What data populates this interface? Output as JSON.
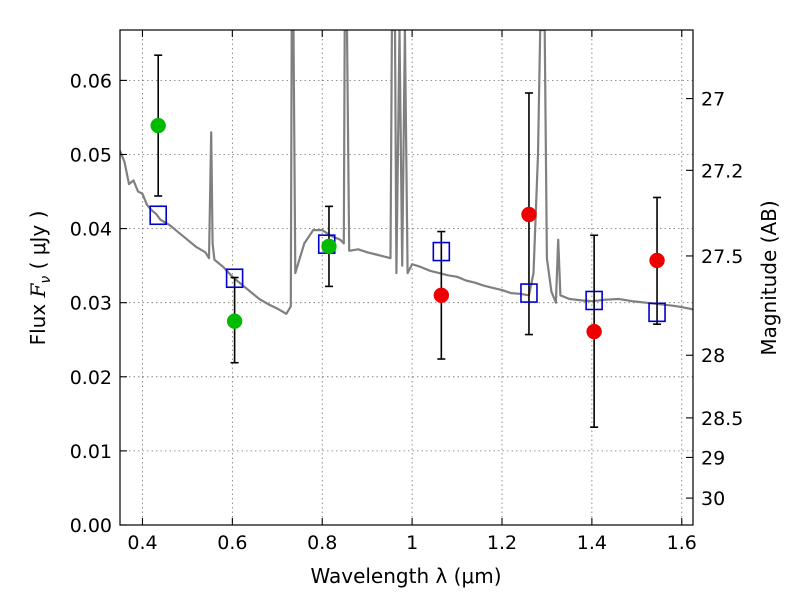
{
  "chart_data": {
    "type": "scatter",
    "xlabel": "Wavelength  λ (μm)",
    "ylabel": "Flux  F_ν  ( μJy )",
    "ylabel_parts": {
      "pre": "Flux  ",
      "sym": "F",
      "sub": "ν",
      "post": "  ( μJy )"
    },
    "y2label": "Magnitude (AB)",
    "xlim": [
      0.35,
      1.625
    ],
    "ylim": [
      0.0,
      0.0668
    ],
    "grid": true,
    "x_ticks": [
      0.4,
      0.6,
      0.8,
      1.0,
      1.2,
      1.4,
      1.6
    ],
    "x_tick_labels": [
      "0.4",
      "0.6",
      "0.8",
      "1",
      "1.2",
      "1.4",
      "1.6"
    ],
    "y_ticks": [
      0.0,
      0.01,
      0.02,
      0.03,
      0.04,
      0.05,
      0.06
    ],
    "y_tick_labels": [
      "0.00",
      "0.01",
      "0.02",
      "0.03",
      "0.04",
      "0.05",
      "0.06"
    ],
    "mag_ticks": [
      {
        "label": "27",
        "value": 27.0
      },
      {
        "label": "27.2",
        "value": 27.2
      },
      {
        "label": "27.5",
        "value": 27.5
      },
      {
        "label": "28",
        "value": 28.0
      },
      {
        "label": "28.5",
        "value": 28.5
      },
      {
        "label": "29",
        "value": 29.0
      },
      {
        "label": "30",
        "value": 30.0
      }
    ],
    "series": [
      {
        "marker": "square",
        "color": "#0000cc",
        "points": [
          {
            "x": 0.435,
            "y": 0.0418
          },
          {
            "x": 0.605,
            "y": 0.0333
          },
          {
            "x": 0.81,
            "y": 0.0379
          },
          {
            "x": 1.065,
            "y": 0.0369
          },
          {
            "x": 1.26,
            "y": 0.0313
          },
          {
            "x": 1.405,
            "y": 0.0303
          },
          {
            "x": 1.545,
            "y": 0.0287
          }
        ]
      },
      {
        "marker": "circle",
        "color": "#00bb00",
        "points": [
          {
            "x": 0.435,
            "y": 0.0539,
            "yerr_low": 0.0444,
            "yerr_high": 0.0634
          },
          {
            "x": 0.605,
            "y": 0.0275,
            "yerr_low": 0.0219,
            "yerr_high": 0.0334
          },
          {
            "x": 0.815,
            "y": 0.0376,
            "yerr_low": 0.0322,
            "yerr_high": 0.043
          }
        ]
      },
      {
        "marker": "circle",
        "color": "#ee0000",
        "points": [
          {
            "x": 1.065,
            "y": 0.031,
            "yerr_low": 0.0224,
            "yerr_high": 0.0396
          },
          {
            "x": 1.26,
            "y": 0.0419,
            "yerr_low": 0.0257,
            "yerr_high": 0.0583
          },
          {
            "x": 1.405,
            "y": 0.0261,
            "yerr_low": 0.0132,
            "yerr_high": 0.0391
          },
          {
            "x": 1.545,
            "y": 0.0357,
            "yerr_low": 0.0271,
            "yerr_high": 0.0442
          }
        ]
      },
      {
        "marker": "line",
        "color": "#808080",
        "points": [
          {
            "x": 0.35,
            "y": 0.0505
          },
          {
            "x": 0.36,
            "y": 0.049
          },
          {
            "x": 0.37,
            "y": 0.046
          },
          {
            "x": 0.38,
            "y": 0.0465
          },
          {
            "x": 0.39,
            "y": 0.045
          },
          {
            "x": 0.4,
            "y": 0.0447
          },
          {
            "x": 0.41,
            "y": 0.0432
          },
          {
            "x": 0.42,
            "y": 0.0425
          },
          {
            "x": 0.43,
            "y": 0.042
          },
          {
            "x": 0.44,
            "y": 0.0412
          },
          {
            "x": 0.46,
            "y": 0.0405
          },
          {
            "x": 0.48,
            "y": 0.0395
          },
          {
            "x": 0.5,
            "y": 0.0385
          },
          {
            "x": 0.52,
            "y": 0.0375
          },
          {
            "x": 0.54,
            "y": 0.0368
          },
          {
            "x": 0.548,
            "y": 0.036
          },
          {
            "x": 0.553,
            "y": 0.053
          },
          {
            "x": 0.556,
            "y": 0.038
          },
          {
            "x": 0.56,
            "y": 0.0358
          },
          {
            "x": 0.58,
            "y": 0.0348
          },
          {
            "x": 0.6,
            "y": 0.0335
          },
          {
            "x": 0.62,
            "y": 0.0325
          },
          {
            "x": 0.64,
            "y": 0.0315
          },
          {
            "x": 0.66,
            "y": 0.0305
          },
          {
            "x": 0.68,
            "y": 0.0298
          },
          {
            "x": 0.7,
            "y": 0.0292
          },
          {
            "x": 0.72,
            "y": 0.0285
          },
          {
            "x": 0.73,
            "y": 0.0295
          },
          {
            "x": 0.732,
            "y": 0.0668
          },
          {
            "x": 0.736,
            "y": 0.0668
          },
          {
            "x": 0.74,
            "y": 0.034
          },
          {
            "x": 0.75,
            "y": 0.036
          },
          {
            "x": 0.76,
            "y": 0.038
          },
          {
            "x": 0.78,
            "y": 0.0398
          },
          {
            "x": 0.8,
            "y": 0.0398
          },
          {
            "x": 0.82,
            "y": 0.039
          },
          {
            "x": 0.84,
            "y": 0.0385
          },
          {
            "x": 0.848,
            "y": 0.038
          },
          {
            "x": 0.85,
            "y": 0.0668
          },
          {
            "x": 0.855,
            "y": 0.0668
          },
          {
            "x": 0.86,
            "y": 0.037
          },
          {
            "x": 0.88,
            "y": 0.0372
          },
          {
            "x": 0.9,
            "y": 0.0368
          },
          {
            "x": 0.92,
            "y": 0.0365
          },
          {
            "x": 0.94,
            "y": 0.0362
          },
          {
            "x": 0.952,
            "y": 0.036
          },
          {
            "x": 0.955,
            "y": 0.0668
          },
          {
            "x": 0.962,
            "y": 0.0668
          },
          {
            "x": 0.965,
            "y": 0.034
          },
          {
            "x": 0.972,
            "y": 0.0668
          },
          {
            "x": 0.978,
            "y": 0.035
          },
          {
            "x": 0.984,
            "y": 0.0668
          },
          {
            "x": 0.99,
            "y": 0.034
          },
          {
            "x": 1.0,
            "y": 0.0352
          },
          {
            "x": 1.02,
            "y": 0.0348
          },
          {
            "x": 1.04,
            "y": 0.0343
          },
          {
            "x": 1.06,
            "y": 0.034
          },
          {
            "x": 1.08,
            "y": 0.0337
          },
          {
            "x": 1.1,
            "y": 0.0335
          },
          {
            "x": 1.12,
            "y": 0.033
          },
          {
            "x": 1.14,
            "y": 0.0327
          },
          {
            "x": 1.16,
            "y": 0.0323
          },
          {
            "x": 1.18,
            "y": 0.032
          },
          {
            "x": 1.2,
            "y": 0.0317
          },
          {
            "x": 1.22,
            "y": 0.0313
          },
          {
            "x": 1.24,
            "y": 0.0312
          },
          {
            "x": 1.26,
            "y": 0.031
          },
          {
            "x": 1.27,
            "y": 0.034
          },
          {
            "x": 1.28,
            "y": 0.05
          },
          {
            "x": 1.285,
            "y": 0.0668
          },
          {
            "x": 1.295,
            "y": 0.0668
          },
          {
            "x": 1.3,
            "y": 0.036
          },
          {
            "x": 1.31,
            "y": 0.0315
          },
          {
            "x": 1.32,
            "y": 0.03
          },
          {
            "x": 1.325,
            "y": 0.0385
          },
          {
            "x": 1.33,
            "y": 0.031
          },
          {
            "x": 1.35,
            "y": 0.0305
          },
          {
            "x": 1.38,
            "y": 0.0303
          },
          {
            "x": 1.4,
            "y": 0.0302
          },
          {
            "x": 1.43,
            "y": 0.0304
          },
          {
            "x": 1.46,
            "y": 0.0305
          },
          {
            "x": 1.49,
            "y": 0.0302
          },
          {
            "x": 1.52,
            "y": 0.03
          },
          {
            "x": 1.55,
            "y": 0.0298
          },
          {
            "x": 1.58,
            "y": 0.0296
          },
          {
            "x": 1.6,
            "y": 0.0294
          },
          {
            "x": 1.625,
            "y": 0.0291
          }
        ]
      }
    ]
  }
}
